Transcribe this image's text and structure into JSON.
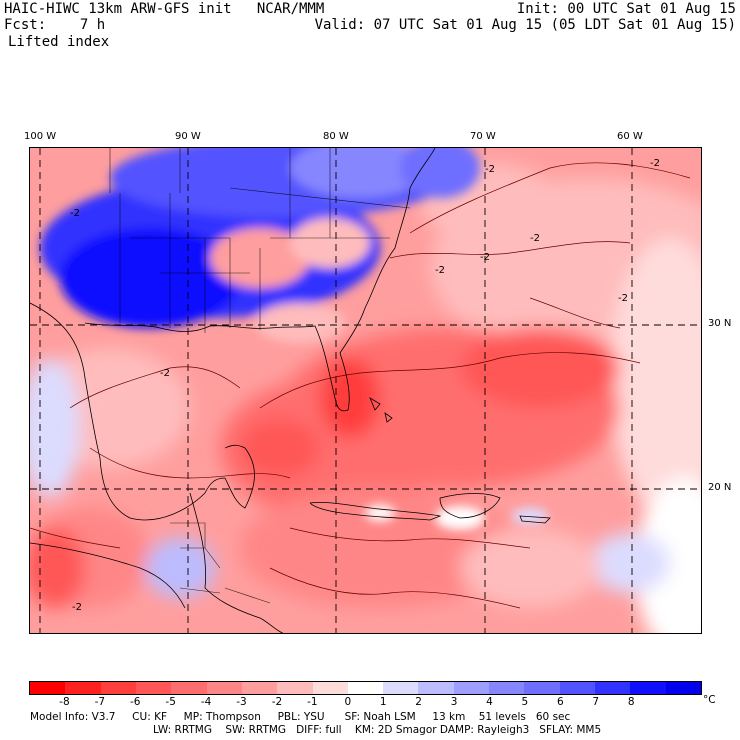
{
  "header": {
    "title": "HAIC-HIWC 13km ARW-GFS init   NCAR/MMM",
    "init": "Init: 00 UTC Sat 01 Aug 15",
    "fcst": "Fcst:    7 h",
    "valid": "Valid: 07 UTC Sat 01 Aug 15 (05 LDT Sat 01 Aug 15)",
    "field": "Lifted index"
  },
  "map_labels": {
    "lon_100": "100 W",
    "lon_90": "90 W",
    "lon_80": "80 W",
    "lon_70": "70 W",
    "lon_60": "60 W",
    "lat_30": "30 N",
    "lat_20": "20 N",
    "contour_labels": [
      "-2",
      "-2",
      "-2",
      "-2",
      "-2",
      "-2",
      "-2",
      "-2",
      "-2"
    ]
  },
  "colorbar": {
    "unit": "°C",
    "ticks": [
      "-8",
      "-7",
      "-6",
      "-5",
      "-4",
      "-3",
      "-2",
      "-1",
      "0",
      "1",
      "2",
      "3",
      "4",
      "5",
      "6",
      "7",
      "8"
    ],
    "colors": [
      "#ff0000",
      "#ff2020",
      "#ff3e3e",
      "#ff5656",
      "#ff6e6e",
      "#ff8686",
      "#ff9e9e",
      "#ffbcbc",
      "#ffdcdc",
      "#ffffff",
      "#dcdcff",
      "#bcbcff",
      "#9e9eff",
      "#8686ff",
      "#6e6eff",
      "#5252ff",
      "#3232ff",
      "#1010ff",
      "#0000ee"
    ]
  },
  "footer": {
    "line1": "Model Info: V3.7     CU: KF     MP: Thompson     PBL: YSU      SF: Noah LSM     13 km    51 levels   60 sec",
    "line2": "LW: RRTMG    SW: RRTMG   DIFF: full    KM: 2D Smagor DAMP: Rayleigh3   SFLAY: MM5"
  }
}
